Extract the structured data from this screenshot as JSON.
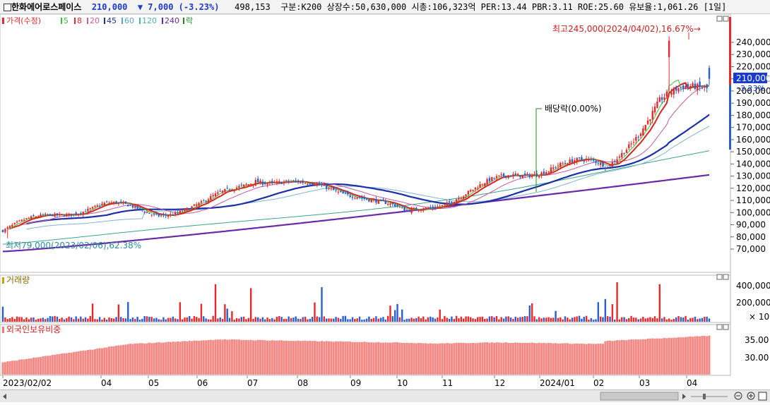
{
  "header": {
    "name": "한화에어로스페이스",
    "price": "210,000",
    "change": "▼ 7,000",
    "change_pct": "(-3.23%)",
    "volume": "498,153",
    "market": "구분:K200",
    "listed_shares": "상장수:50,630,000",
    "market_cap": "시총:106,323억",
    "per": "PER:13.44",
    "pbr": "PBR:3.11",
    "roe": "ROE:25.60",
    "holding_rate": "유보율:1,061.26",
    "period": "[1일]"
  },
  "colors": {
    "up": "#e8282a",
    "down": "#2a5fd1",
    "ma5": "#cc1f1f",
    "ma20": "#a1377d",
    "ma60": "#2b8ba4",
    "ma120": "#1b2fa6",
    "ma240": "#6a2aa8"
  },
  "price_panel": {
    "legend_price": "가격(수정)",
    "legend_items": [
      "5",
      "8",
      "20",
      "45",
      "60",
      "120",
      "240"
    ],
    "legend_rak": "락",
    "max_label": "최고245,000(2024/04/02),16.67%→",
    "min_label": "최저79,000(2023/02/06),62.38%",
    "dividend_label": "배당락(0.00%)",
    "current_value_tag": "210,000",
    "current_pct_tag": "-3.23%",
    "y_ticks": [
      "240,000",
      "230,000",
      "220,000",
      "210,000",
      "200,000",
      "190,000",
      "180,000",
      "170,000",
      "160,000",
      "150,000",
      "140,000",
      "130,000",
      "120,000",
      "110,000",
      "100,000",
      "90,000",
      "80,000",
      "70,000"
    ]
  },
  "volume_panel": {
    "title": "거래량",
    "y_ticks": [
      "400,000",
      "200,000"
    ],
    "multiplier": "× 10"
  },
  "foreign_panel": {
    "title": "외국인보유비중",
    "y_ticks": [
      "35.00",
      "30.00"
    ]
  },
  "x_axis_labels": [
    "2023/02/02",
    "04",
    "05",
    "06",
    "07",
    "08",
    "09",
    "10",
    "11",
    "12",
    "2024/01",
    "02",
    "03",
    "04"
  ],
  "chart_data": {
    "type": "candlestick",
    "x_labels": [
      "2023/02/02",
      "04",
      "05",
      "06",
      "07",
      "08",
      "09",
      "10",
      "11",
      "12",
      "2024/01",
      "02",
      "03",
      "04"
    ],
    "price_close_monthly_approx": {
      "x": [
        "2023-02",
        "2023-03",
        "2023-04",
        "2023-05",
        "2023-06",
        "2023-07",
        "2023-08",
        "2023-09",
        "2023-10",
        "2023-11",
        "2023-12",
        "2024-01",
        "2024-02",
        "2024-03",
        "2024-04"
      ],
      "values": [
        85000,
        96000,
        104000,
        102000,
        109000,
        130000,
        117000,
        115000,
        100000,
        118000,
        128000,
        137000,
        134000,
        195000,
        210000
      ]
    },
    "ylim_price": [
      60000,
      250000
    ],
    "max_point": {
      "date": "2024/04/02",
      "value": 245000
    },
    "min_point": {
      "date": "2023/02/06",
      "value": 79000
    },
    "volume_ylim": [
      0,
      400000
    ],
    "foreign_ratio_ylim": [
      28,
      37
    ]
  }
}
